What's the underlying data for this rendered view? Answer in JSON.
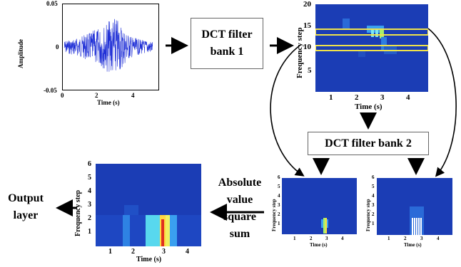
{
  "waveform": {
    "ylabel": "Amplitude",
    "xlabel": "Time (s)",
    "yticks": [
      "0.05",
      "0",
      "-0.05"
    ],
    "xticks": [
      "0",
      "2",
      "4"
    ],
    "line_color": "#1f2fd6"
  },
  "box1": {
    "line1": "DCT filter",
    "line2": "bank 1"
  },
  "box2": {
    "label": "DCT filter bank 2"
  },
  "spec_main": {
    "ylabel": "Frequency step",
    "xlabel": "Time (s)",
    "yticks": [
      "20",
      "15",
      "10",
      "5"
    ],
    "xticks": [
      "1",
      "2",
      "3",
      "4"
    ],
    "highlight_bands": [
      "13-14",
      "10-11"
    ],
    "highlight_color": "#f0e24a"
  },
  "spec_small_1": {
    "ylabel": "Frequency step",
    "xlabel": "Time (s)",
    "yticks": [
      "6",
      "5",
      "4",
      "3",
      "2",
      "1"
    ],
    "xticks": [
      "1",
      "2",
      "3",
      "4"
    ]
  },
  "spec_small_2": {
    "ylabel": "Frequency step",
    "xlabel": "Time (s)",
    "yticks": [
      "6",
      "5",
      "4",
      "3",
      "2",
      "1"
    ],
    "xticks": [
      "1",
      "2",
      "3",
      "4"
    ]
  },
  "spec_output": {
    "ylabel": "Frequency step",
    "xlabel": "Time (s)",
    "yticks": [
      "6",
      "5",
      "4",
      "3",
      "2",
      "1"
    ],
    "xticks": [
      "1",
      "2",
      "3",
      "4"
    ]
  },
  "abs_label": {
    "line1": "Absolute",
    "line2": "value",
    "line3": "square",
    "line4": "sum"
  },
  "output_label": {
    "line1": "Output",
    "line2": "layer"
  },
  "colors": {
    "bg": "#1a3bb0",
    "accent": "#000000"
  }
}
